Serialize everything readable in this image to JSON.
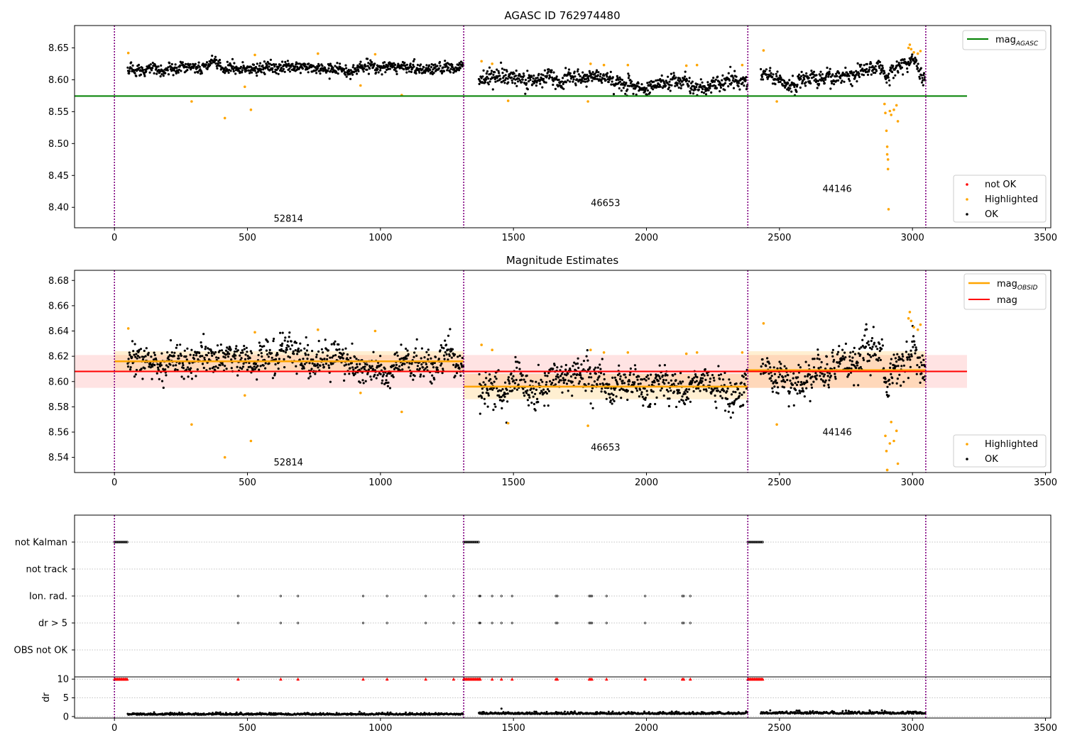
{
  "chart_data": [
    {
      "type": "scatter",
      "title": "AGASC ID 762974480",
      "xlim": [
        -150,
        3520
      ],
      "ylim": [
        8.368,
        8.685
      ],
      "xticks": [
        0,
        500,
        1000,
        1500,
        2000,
        2500,
        3000,
        3500
      ],
      "yticks": [
        8.4,
        8.45,
        8.5,
        8.55,
        8.6,
        8.65
      ],
      "obs_boundaries": [
        0,
        1313,
        2381,
        3050
      ],
      "obs_labels": [
        {
          "text": "52814",
          "x": 654,
          "y": 8.3774
        },
        {
          "text": "46653",
          "x": 1846,
          "y": 8.4018
        },
        {
          "text": "44146",
          "x": 2717,
          "y": 8.424
        }
      ],
      "reference_line": {
        "label": "mag",
        "subscript": "AGASC",
        "y": 8.5745,
        "x": [
          -150,
          3205
        ],
        "color": "#008000"
      },
      "segments": [
        {
          "x0": 50,
          "x1": 1313,
          "mean": 8.618,
          "noise": 0.0055,
          "drift": 0.0
        },
        {
          "x0": 1370,
          "x1": 2381,
          "mean": 8.597,
          "noise": 0.0075,
          "drift": 0.004
        },
        {
          "x0": 2430,
          "x1": 3050,
          "mean": 8.61,
          "noise": 0.0075,
          "drift": -0.01
        }
      ],
      "highlighted_points": [
        [
          52,
          8.642
        ],
        [
          290,
          8.566
        ],
        [
          415,
          8.54
        ],
        [
          490,
          8.589
        ],
        [
          513,
          8.553
        ],
        [
          528,
          8.639
        ],
        [
          765,
          8.641
        ],
        [
          925,
          8.591
        ],
        [
          980,
          8.64
        ],
        [
          1080,
          8.576
        ],
        [
          1380,
          8.629
        ],
        [
          1420,
          8.625
        ],
        [
          1480,
          8.567
        ],
        [
          1780,
          8.566
        ],
        [
          1790,
          8.625
        ],
        [
          1840,
          8.623
        ],
        [
          1930,
          8.623
        ],
        [
          2150,
          8.622
        ],
        [
          2190,
          8.623
        ],
        [
          2360,
          8.623
        ],
        [
          2440,
          8.646
        ],
        [
          2490,
          8.566
        ],
        [
          2895,
          8.562
        ],
        [
          2898,
          8.548
        ],
        [
          2902,
          8.52
        ],
        [
          2905,
          8.495
        ],
        [
          2905,
          8.483
        ],
        [
          2908,
          8.475
        ],
        [
          2908,
          8.46
        ],
        [
          2910,
          8.397
        ],
        [
          2915,
          8.551
        ],
        [
          2920,
          8.545
        ],
        [
          2930,
          8.553
        ],
        [
          2940,
          8.56
        ],
        [
          2945,
          8.535
        ],
        [
          2985,
          8.65
        ],
        [
          2990,
          8.655
        ],
        [
          2995,
          8.648
        ],
        [
          3005,
          8.643
        ],
        [
          3020,
          8.641
        ],
        [
          3030,
          8.645
        ]
      ],
      "legend": [
        {
          "label": "not OK",
          "color": "#ff0000"
        },
        {
          "label": "Highlighted",
          "color": "#ffa500"
        },
        {
          "label": "OK",
          "color": "#000000"
        }
      ]
    },
    {
      "type": "scatter",
      "title": "Magnitude Estimates",
      "xlim": [
        -150,
        3520
      ],
      "ylim": [
        8.528,
        8.688
      ],
      "xticks": [
        0,
        500,
        1000,
        1500,
        2000,
        2500,
        3000,
        3500
      ],
      "yticks": [
        8.54,
        8.56,
        8.58,
        8.6,
        8.62,
        8.64,
        8.66,
        8.68
      ],
      "obs_boundaries": [
        0,
        1313,
        2381,
        3050
      ],
      "obs_labels": [
        {
          "text": "52814",
          "x": 654,
          "y": 8.5335
        },
        {
          "text": "46653",
          "x": 1846,
          "y": 8.5455
        },
        {
          "text": "44146",
          "x": 2717,
          "y": 8.5575
        }
      ],
      "mag_line": {
        "label": "mag",
        "y": 8.608,
        "band": [
          8.595,
          8.621
        ],
        "x": [
          -150,
          3205
        ],
        "color": "#ff0000"
      },
      "obsid_lines": [
        {
          "x0": 0,
          "x1": 1313,
          "y": 8.616,
          "band": [
            8.608,
            8.624
          ]
        },
        {
          "x0": 1313,
          "x1": 2381,
          "y": 8.596,
          "band": [
            8.586,
            8.606
          ]
        },
        {
          "x0": 2381,
          "x1": 3050,
          "y": 8.609,
          "band": [
            8.595,
            8.624
          ]
        }
      ],
      "obsid_label": {
        "label": "mag",
        "subscript": "OBSID",
        "color": "#ffa500"
      },
      "segments": [
        {
          "x0": 50,
          "x1": 1313,
          "mean": 8.616,
          "noise": 0.0075,
          "drift": 0.0
        },
        {
          "x0": 1370,
          "x1": 2381,
          "mean": 8.596,
          "noise": 0.0085,
          "drift": 0.006
        },
        {
          "x0": 2430,
          "x1": 3050,
          "mean": 8.608,
          "noise": 0.0085,
          "drift": -0.012
        }
      ],
      "highlighted_points": [
        [
          52,
          8.642
        ],
        [
          290,
          8.566
        ],
        [
          415,
          8.54
        ],
        [
          490,
          8.589
        ],
        [
          513,
          8.553
        ],
        [
          528,
          8.639
        ],
        [
          765,
          8.641
        ],
        [
          925,
          8.591
        ],
        [
          980,
          8.64
        ],
        [
          1080,
          8.576
        ],
        [
          1380,
          8.629
        ],
        [
          1420,
          8.625
        ],
        [
          1480,
          8.567
        ],
        [
          1780,
          8.565
        ],
        [
          1790,
          8.625
        ],
        [
          1840,
          8.623
        ],
        [
          1930,
          8.623
        ],
        [
          2150,
          8.622
        ],
        [
          2190,
          8.623
        ],
        [
          2360,
          8.623
        ],
        [
          2440,
          8.646
        ],
        [
          2490,
          8.566
        ],
        [
          2898,
          8.557
        ],
        [
          2902,
          8.545
        ],
        [
          2905,
          8.53
        ],
        [
          2905,
          8.53
        ],
        [
          2915,
          8.551
        ],
        [
          2920,
          8.568
        ],
        [
          2930,
          8.553
        ],
        [
          2940,
          8.561
        ],
        [
          2945,
          8.535
        ],
        [
          2985,
          8.65
        ],
        [
          2990,
          8.655
        ],
        [
          2995,
          8.648
        ],
        [
          3005,
          8.643
        ],
        [
          3020,
          8.641
        ],
        [
          3030,
          8.645
        ]
      ],
      "legend": [
        {
          "label": "Highlighted",
          "color": "#ffa500"
        },
        {
          "label": "OK",
          "color": "#000000"
        }
      ]
    },
    {
      "type": "scatter",
      "xlim": [
        -150,
        3520
      ],
      "categories": [
        "not Kalman",
        "not track",
        "Ion. rad.",
        "dr > 5",
        "OBS not OK"
      ],
      "obs_boundaries": [
        0,
        1313,
        2381,
        3050
      ],
      "kalman_ranges": [
        [
          0,
          50
        ],
        [
          1313,
          1370
        ],
        [
          2381,
          2440
        ]
      ],
      "flag_times": [
        465,
        625,
        690,
        935,
        1025,
        1170,
        1275,
        1372,
        1375,
        1420,
        1455,
        1495,
        1660,
        1665,
        1785,
        1790,
        1795,
        1850,
        1995,
        2135,
        2140,
        2165
      ]
    },
    {
      "type": "scatter",
      "xlim": [
        -150,
        3520
      ],
      "ylim": [
        -0.4,
        10.6
      ],
      "xticks": [
        0,
        500,
        1000,
        1500,
        2000,
        2500,
        3000,
        3500
      ],
      "yticks": [
        0,
        5,
        10
      ],
      "ylabel": "dr",
      "obs_boundaries": [
        0,
        1313,
        2381,
        3050
      ],
      "clip_value": 10,
      "segments": [
        {
          "x0": 50,
          "x1": 1313,
          "mean": 0.55,
          "noise": 0.25
        },
        {
          "x0": 1370,
          "x1": 2381,
          "mean": 0.75,
          "noise": 0.3
        },
        {
          "x0": 2430,
          "x1": 3050,
          "mean": 0.85,
          "noise": 0.35
        }
      ],
      "outliers": [
        [
          1455,
          2.1
        ],
        [
          2750,
          1.6
        ],
        [
          2760,
          1.5
        ]
      ]
    }
  ]
}
